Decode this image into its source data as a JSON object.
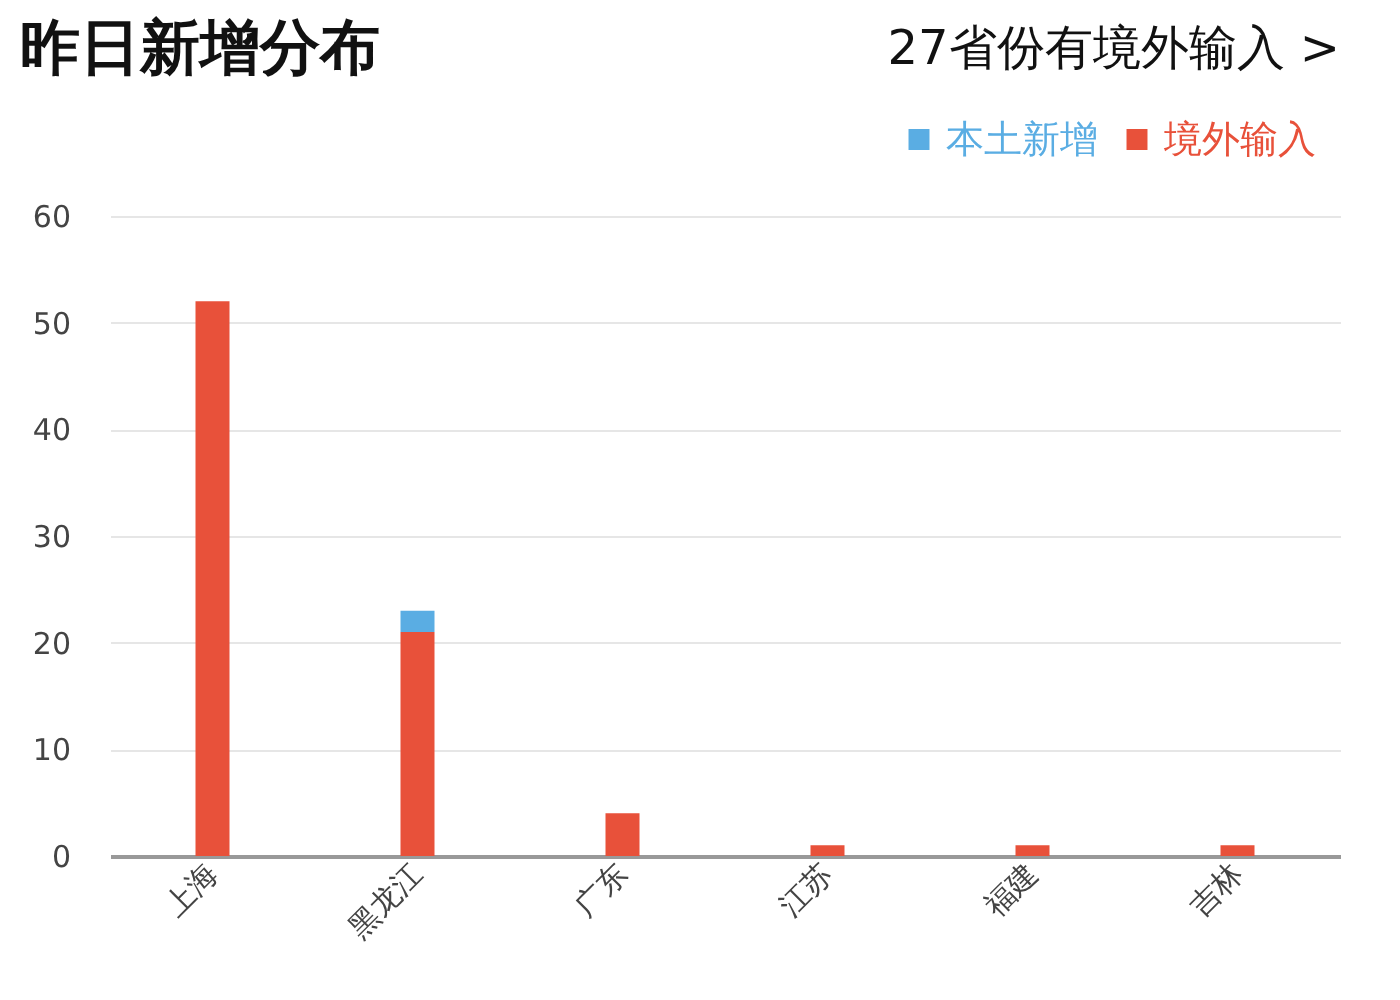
{
  "chart_data": {
    "type": "bar",
    "title": "昨日新增分布",
    "annotations": [
      "27省份有境外输入 >"
    ],
    "categories": [
      "上海",
      "黑龙江",
      "广东",
      "江苏",
      "福建",
      "吉林"
    ],
    "stacked": true,
    "series": [
      {
        "name": "境外输入",
        "color": "#e8513a",
        "values": [
          52,
          21,
          4,
          1,
          1,
          1
        ]
      },
      {
        "name": "本土新增",
        "color": "#5aade3",
        "values": [
          0,
          2,
          0,
          0,
          0,
          0
        ]
      }
    ],
    "ylim": [
      0,
      60
    ],
    "yticks": [
      0,
      10,
      20,
      30,
      40,
      50,
      60
    ],
    "grid": "y",
    "legend": "top right"
  }
}
